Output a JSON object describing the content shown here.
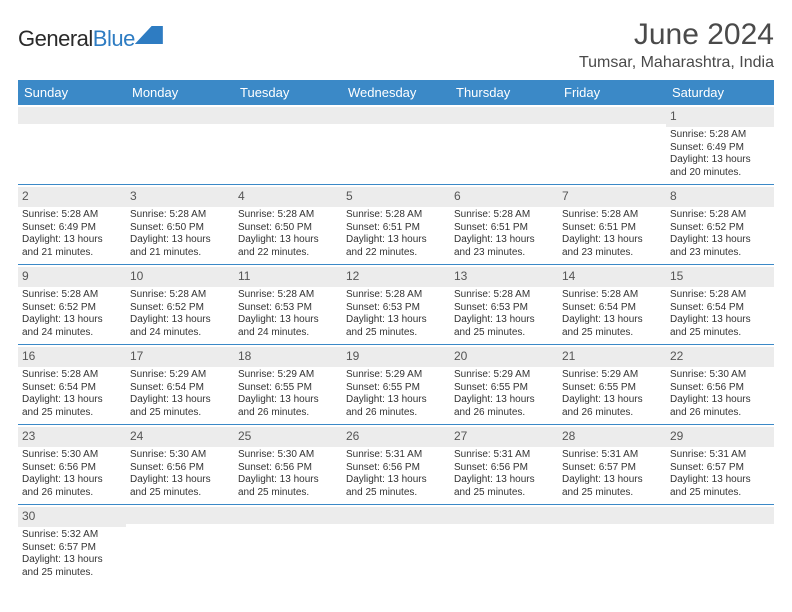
{
  "brand": {
    "name_part1": "General",
    "name_part2": "Blue"
  },
  "title": "June 2024",
  "location": "Tumsar, Maharashtra, India",
  "colors": {
    "header_bg": "#3b89c7",
    "header_fg": "#ffffff",
    "row_border": "#3b89c7",
    "daynum_bg": "#ececec",
    "brand_blue": "#2e7cc2",
    "text": "#333333",
    "page_bg": "#ffffff"
  },
  "weekdays": [
    "Sunday",
    "Monday",
    "Tuesday",
    "Wednesday",
    "Thursday",
    "Friday",
    "Saturday"
  ],
  "weeks": [
    [
      null,
      null,
      null,
      null,
      null,
      null,
      {
        "n": "1",
        "sr": "5:28 AM",
        "ss": "6:49 PM",
        "dl": "13 hours and 20 minutes."
      }
    ],
    [
      {
        "n": "2",
        "sr": "5:28 AM",
        "ss": "6:49 PM",
        "dl": "13 hours and 21 minutes."
      },
      {
        "n": "3",
        "sr": "5:28 AM",
        "ss": "6:50 PM",
        "dl": "13 hours and 21 minutes."
      },
      {
        "n": "4",
        "sr": "5:28 AM",
        "ss": "6:50 PM",
        "dl": "13 hours and 22 minutes."
      },
      {
        "n": "5",
        "sr": "5:28 AM",
        "ss": "6:51 PM",
        "dl": "13 hours and 22 minutes."
      },
      {
        "n": "6",
        "sr": "5:28 AM",
        "ss": "6:51 PM",
        "dl": "13 hours and 23 minutes."
      },
      {
        "n": "7",
        "sr": "5:28 AM",
        "ss": "6:51 PM",
        "dl": "13 hours and 23 minutes."
      },
      {
        "n": "8",
        "sr": "5:28 AM",
        "ss": "6:52 PM",
        "dl": "13 hours and 23 minutes."
      }
    ],
    [
      {
        "n": "9",
        "sr": "5:28 AM",
        "ss": "6:52 PM",
        "dl": "13 hours and 24 minutes."
      },
      {
        "n": "10",
        "sr": "5:28 AM",
        "ss": "6:52 PM",
        "dl": "13 hours and 24 minutes."
      },
      {
        "n": "11",
        "sr": "5:28 AM",
        "ss": "6:53 PM",
        "dl": "13 hours and 24 minutes."
      },
      {
        "n": "12",
        "sr": "5:28 AM",
        "ss": "6:53 PM",
        "dl": "13 hours and 25 minutes."
      },
      {
        "n": "13",
        "sr": "5:28 AM",
        "ss": "6:53 PM",
        "dl": "13 hours and 25 minutes."
      },
      {
        "n": "14",
        "sr": "5:28 AM",
        "ss": "6:54 PM",
        "dl": "13 hours and 25 minutes."
      },
      {
        "n": "15",
        "sr": "5:28 AM",
        "ss": "6:54 PM",
        "dl": "13 hours and 25 minutes."
      }
    ],
    [
      {
        "n": "16",
        "sr": "5:28 AM",
        "ss": "6:54 PM",
        "dl": "13 hours and 25 minutes."
      },
      {
        "n": "17",
        "sr": "5:29 AM",
        "ss": "6:54 PM",
        "dl": "13 hours and 25 minutes."
      },
      {
        "n": "18",
        "sr": "5:29 AM",
        "ss": "6:55 PM",
        "dl": "13 hours and 26 minutes."
      },
      {
        "n": "19",
        "sr": "5:29 AM",
        "ss": "6:55 PM",
        "dl": "13 hours and 26 minutes."
      },
      {
        "n": "20",
        "sr": "5:29 AM",
        "ss": "6:55 PM",
        "dl": "13 hours and 26 minutes."
      },
      {
        "n": "21",
        "sr": "5:29 AM",
        "ss": "6:55 PM",
        "dl": "13 hours and 26 minutes."
      },
      {
        "n": "22",
        "sr": "5:30 AM",
        "ss": "6:56 PM",
        "dl": "13 hours and 26 minutes."
      }
    ],
    [
      {
        "n": "23",
        "sr": "5:30 AM",
        "ss": "6:56 PM",
        "dl": "13 hours and 26 minutes."
      },
      {
        "n": "24",
        "sr": "5:30 AM",
        "ss": "6:56 PM",
        "dl": "13 hours and 25 minutes."
      },
      {
        "n": "25",
        "sr": "5:30 AM",
        "ss": "6:56 PM",
        "dl": "13 hours and 25 minutes."
      },
      {
        "n": "26",
        "sr": "5:31 AM",
        "ss": "6:56 PM",
        "dl": "13 hours and 25 minutes."
      },
      {
        "n": "27",
        "sr": "5:31 AM",
        "ss": "6:56 PM",
        "dl": "13 hours and 25 minutes."
      },
      {
        "n": "28",
        "sr": "5:31 AM",
        "ss": "6:57 PM",
        "dl": "13 hours and 25 minutes."
      },
      {
        "n": "29",
        "sr": "5:31 AM",
        "ss": "6:57 PM",
        "dl": "13 hours and 25 minutes."
      }
    ],
    [
      {
        "n": "30",
        "sr": "5:32 AM",
        "ss": "6:57 PM",
        "dl": "13 hours and 25 minutes."
      },
      null,
      null,
      null,
      null,
      null,
      null
    ]
  ],
  "labels": {
    "sunrise": "Sunrise:",
    "sunset": "Sunset:",
    "daylight": "Daylight:"
  }
}
